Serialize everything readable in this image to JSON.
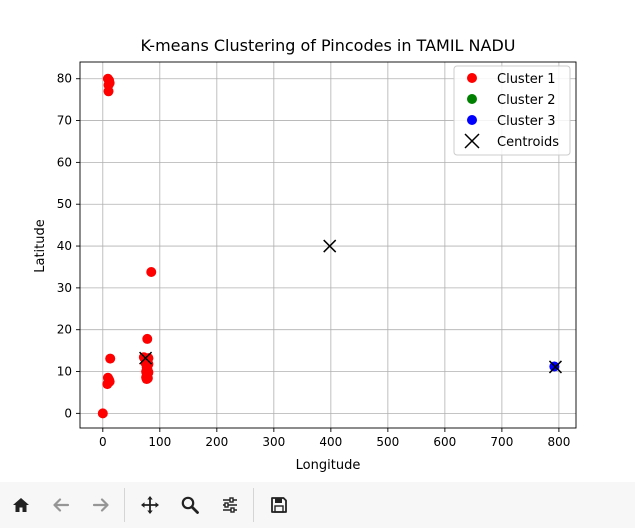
{
  "chart_data": {
    "type": "scatter",
    "title": "K-means Clustering of Pincodes in TAMIL NADU",
    "xlabel": "Longitude",
    "ylabel": "Latitude",
    "xlim": [
      -40,
      830
    ],
    "ylim": [
      -3.5,
      84
    ],
    "xticks": [
      0,
      100,
      200,
      300,
      400,
      500,
      600,
      700,
      800
    ],
    "yticks": [
      0,
      10,
      20,
      30,
      40,
      50,
      60,
      70,
      80
    ],
    "grid": true,
    "legend_position": "top-right",
    "series": [
      {
        "name": "Cluster 1",
        "color": "#ff0000",
        "marker": "circle",
        "points": [
          [
            0,
            0
          ],
          [
            9,
            8.5
          ],
          [
            10,
            7.5
          ],
          [
            11,
            8
          ],
          [
            8,
            7
          ],
          [
            12,
            7.6
          ],
          [
            13,
            13.1
          ],
          [
            9,
            80
          ],
          [
            10,
            78.5
          ],
          [
            11,
            79.6
          ],
          [
            12,
            79
          ],
          [
            10,
            77
          ],
          [
            85,
            33.8
          ],
          [
            78,
            17.8
          ],
          [
            72,
            13.4
          ],
          [
            76,
            12.5
          ],
          [
            78,
            12.8
          ],
          [
            80,
            13.2
          ],
          [
            75,
            12
          ],
          [
            79,
            11.5
          ],
          [
            77,
            11
          ],
          [
            78,
            10.6
          ],
          [
            76,
            10
          ],
          [
            79,
            10.2
          ],
          [
            77,
            9.5
          ],
          [
            78,
            9
          ],
          [
            80,
            9.8
          ],
          [
            76,
            8.6
          ],
          [
            77,
            8.2
          ],
          [
            79,
            8.4
          ],
          [
            78,
            8.7
          ],
          [
            80,
            11.8
          ]
        ]
      },
      {
        "name": "Cluster 2",
        "color": "#008000",
        "marker": "circle",
        "points": []
      },
      {
        "name": "Cluster 3",
        "color": "#0000ff",
        "marker": "circle",
        "points": [
          [
            792,
            11.2
          ]
        ]
      },
      {
        "name": "Centroids",
        "color": "#000000",
        "marker": "x",
        "points": [
          [
            75,
            13.2
          ],
          [
            398,
            40
          ],
          [
            794,
            11.1
          ]
        ]
      }
    ]
  },
  "toolbar": {
    "buttons": [
      {
        "icon": "home-icon",
        "enabled": true
      },
      {
        "icon": "back-arrow-icon",
        "enabled": false
      },
      {
        "icon": "forward-arrow-icon",
        "enabled": false
      },
      {
        "icon": "pan-icon",
        "enabled": true
      },
      {
        "icon": "zoom-icon",
        "enabled": true
      },
      {
        "icon": "configure-subplots-icon",
        "enabled": true
      },
      {
        "icon": "save-icon",
        "enabled": true
      }
    ]
  }
}
